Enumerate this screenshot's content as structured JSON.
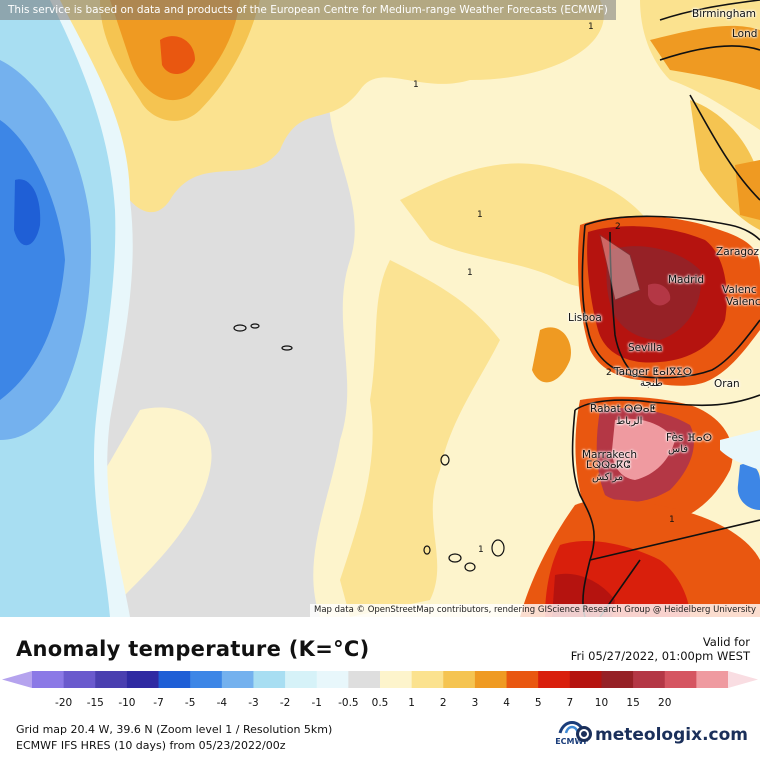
{
  "notice": "This service is based on data and products of the European Centre for Medium-range Weather Forecasts (ECMWF)",
  "attribution": "Map data © OpenStreetMap contributors, rendering GIScience Research Group @ Heidelberg University",
  "cities": {
    "birmingham": "Birmingham",
    "london": "Lond",
    "zaragoza": "Zaragoz",
    "madrid": "Madrid",
    "valencia1": "Valenc",
    "valencia2": "Valenc",
    "lisboa": "Lisboa",
    "sevilla": "Sevilla",
    "tanger": "Tanger ⵟⴰⵏⴳⵉⵔ",
    "tanger_ar": "طنجة",
    "oran": "Oran",
    "rabat": "Rabat ⵕⴱⴰⵟ",
    "rabat_ar": "الرباط",
    "fes": "Fès ⴼⴰⵙ",
    "fes_ar": "فاس",
    "marrakech": "Marrakech",
    "marrakech_tf": "ⵎⵕⵕⴰⴽⵛ",
    "marrakech_ar": "مراكش"
  },
  "contour_labels": {
    "one": "1",
    "two": "2"
  },
  "legend": {
    "title": "Anomaly temperature (K=°C)",
    "valid_label": "Valid for",
    "valid_time": "Fri 05/27/2022, 01:00pm WEST",
    "ticks": [
      "-20",
      "-15",
      "-10",
      "-7",
      "-5",
      "-4",
      "-3",
      "-2",
      "-1",
      "-0.5",
      "0.5",
      "1",
      "2",
      "3",
      "4",
      "5",
      "7",
      "10",
      "15",
      "20"
    ],
    "colors": [
      "#b5a3ee",
      "#8b79e6",
      "#6a5acd",
      "#4a3fb0",
      "#2f2aa2",
      "#1f5fd6",
      "#3d86e6",
      "#74b1ee",
      "#a8def2",
      "#d6f2f8",
      "#e8f7fb",
      "#dedede",
      "#fdf4cc",
      "#fbe28f",
      "#f5c451",
      "#ef9a22",
      "#e95710",
      "#d91f0c",
      "#b5130f",
      "#962126",
      "#b43745",
      "#d55561",
      "#ef9aa0",
      "#f9dde2"
    ]
  },
  "info": {
    "grid": "Grid map 20.4 W, 39.6 N (Zoom level 1 / Resolution 5km)",
    "model": "ECMWF IFS HRES (10 days) from 05/23/2022/00z"
  },
  "logos": {
    "ecmwf": "ECMWF",
    "meteologix": "meteologix.com"
  },
  "icons": {
    "meteologix_logo": "globe-icon",
    "ecmwf_logo": "ecmwf-logo-icon"
  }
}
